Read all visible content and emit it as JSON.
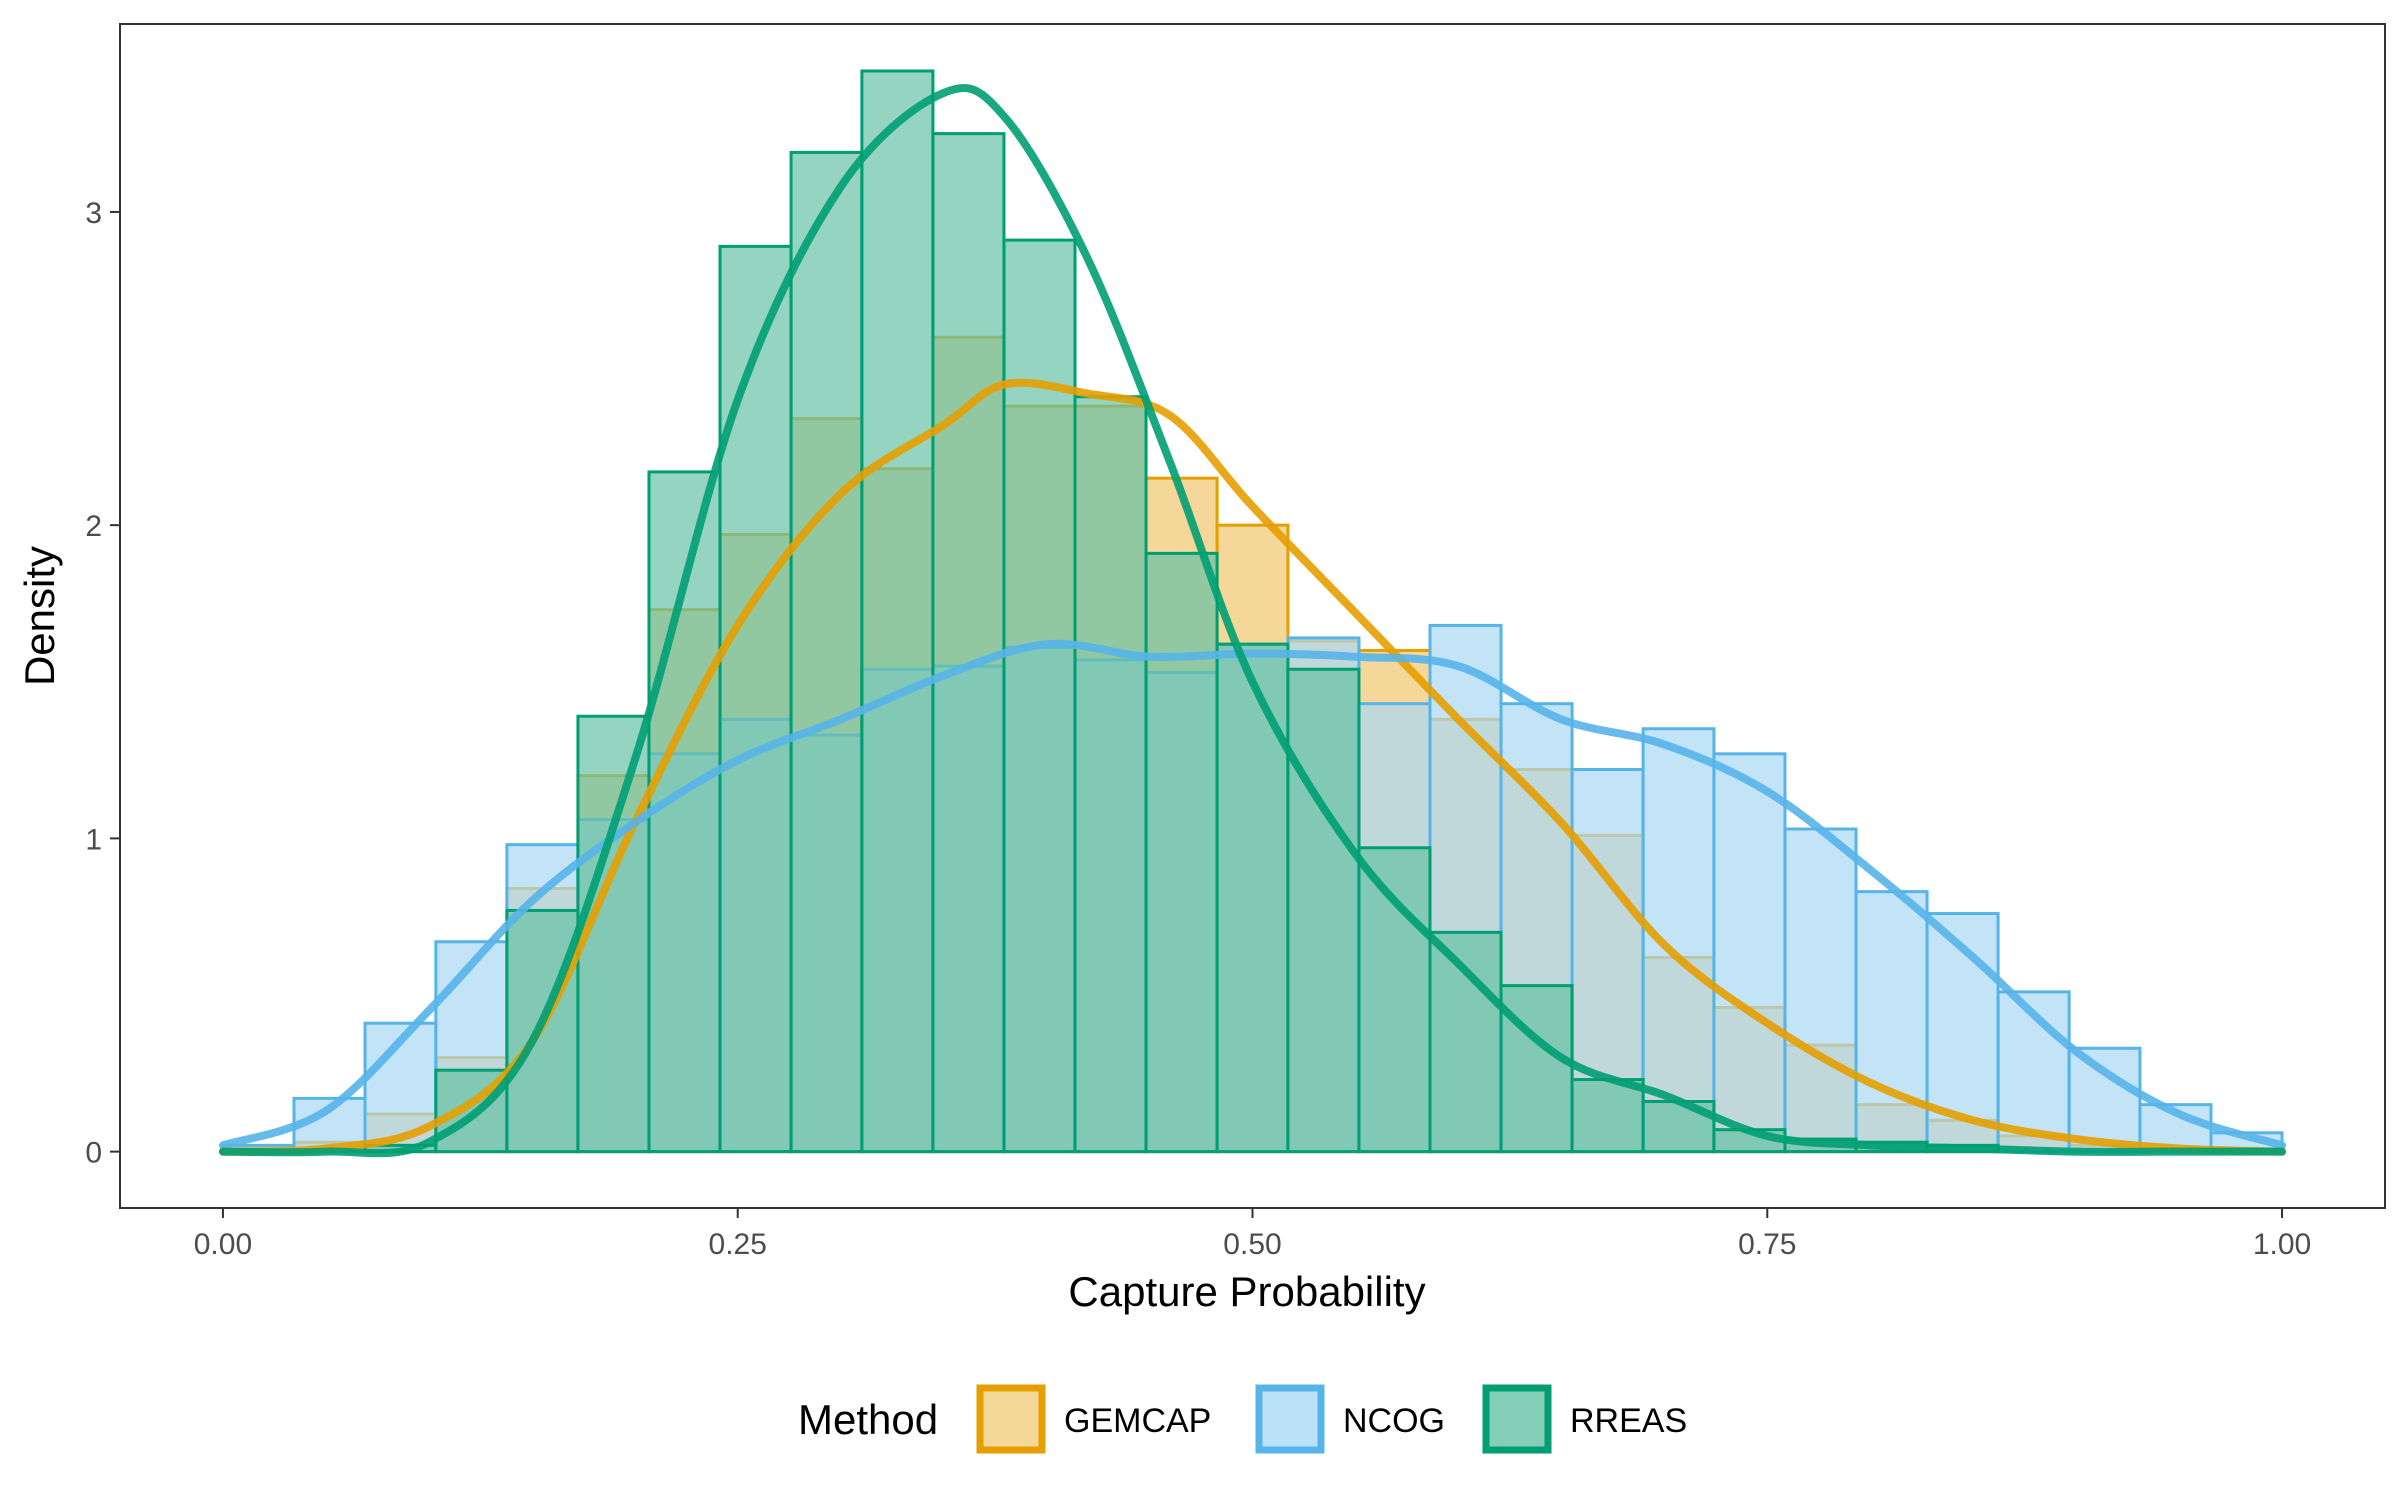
{
  "chart_data": {
    "type": "histogram-density",
    "xlabel": "Capture Probability",
    "ylabel": "Density",
    "xlim": [
      -0.05,
      1.05
    ],
    "ylim": [
      -0.18,
      3.6
    ],
    "x_ticks": [
      0,
      0.25,
      0.5,
      0.75,
      1
    ],
    "x_tick_labels": [
      "0.00",
      "0.25",
      "0.50",
      "0.75",
      "1.00"
    ],
    "y_ticks": [
      0,
      1,
      2,
      3
    ],
    "y_tick_labels": [
      "0",
      "1",
      "2",
      "3"
    ],
    "grid": false,
    "legend": {
      "title": "Method",
      "position": "bottom"
    },
    "bin_edges": [
      0,
      0.0345,
      0.069,
      0.1034,
      0.1379,
      0.1724,
      0.2069,
      0.2414,
      0.2759,
      0.3103,
      0.3448,
      0.3793,
      0.4138,
      0.4483,
      0.4828,
      0.5172,
      0.5517,
      0.5862,
      0.6207,
      0.6552,
      0.6897,
      0.7241,
      0.7586,
      0.7931,
      0.8276,
      0.8621,
      0.8966,
      0.931,
      0.9655,
      1
    ],
    "series": [
      {
        "name": "GEMCAP",
        "color": "#E69F00",
        "fill": "#F3CE7F",
        "hist": [
          0.01,
          0.03,
          0.12,
          0.3,
          0.84,
          1.2,
          1.73,
          1.97,
          2.34,
          2.18,
          2.6,
          2.38,
          2.38,
          2.15,
          2.0,
          1.63,
          1.6,
          1.38,
          1.22,
          1.01,
          0.62,
          0.46,
          0.34,
          0.15,
          0.1,
          0.05,
          0.02,
          0.01,
          0.0
        ],
        "density": [
          [
            0,
            0.0
          ],
          [
            0.05,
            0.01
          ],
          [
            0.1,
            0.08
          ],
          [
            0.15,
            0.35
          ],
          [
            0.2,
            1.05
          ],
          [
            0.25,
            1.68
          ],
          [
            0.3,
            2.1
          ],
          [
            0.35,
            2.32
          ],
          [
            0.38,
            2.45
          ],
          [
            0.42,
            2.42
          ],
          [
            0.46,
            2.35
          ],
          [
            0.5,
            2.06
          ],
          [
            0.55,
            1.72
          ],
          [
            0.6,
            1.38
          ],
          [
            0.65,
            1.05
          ],
          [
            0.7,
            0.66
          ],
          [
            0.75,
            0.41
          ],
          [
            0.8,
            0.22
          ],
          [
            0.85,
            0.1
          ],
          [
            0.9,
            0.04
          ],
          [
            0.95,
            0.01
          ],
          [
            1.0,
            0.0
          ]
        ]
      },
      {
        "name": "NCOG",
        "color": "#56B4E9",
        "fill": "#AAD9F4",
        "hist": [
          0.02,
          0.17,
          0.41,
          0.67,
          0.98,
          1.06,
          1.27,
          1.38,
          1.33,
          1.54,
          1.55,
          1.61,
          1.57,
          1.53,
          1.62,
          1.64,
          1.43,
          1.68,
          1.43,
          1.22,
          1.35,
          1.27,
          1.03,
          0.83,
          0.76,
          0.51,
          0.33,
          0.15,
          0.06
        ],
        "density": [
          [
            0,
            0.02
          ],
          [
            0.05,
            0.13
          ],
          [
            0.1,
            0.45
          ],
          [
            0.15,
            0.8
          ],
          [
            0.2,
            1.05
          ],
          [
            0.25,
            1.25
          ],
          [
            0.3,
            1.38
          ],
          [
            0.35,
            1.52
          ],
          [
            0.4,
            1.62
          ],
          [
            0.45,
            1.58
          ],
          [
            0.5,
            1.59
          ],
          [
            0.55,
            1.58
          ],
          [
            0.6,
            1.55
          ],
          [
            0.65,
            1.38
          ],
          [
            0.7,
            1.3
          ],
          [
            0.75,
            1.15
          ],
          [
            0.8,
            0.9
          ],
          [
            0.85,
            0.62
          ],
          [
            0.9,
            0.32
          ],
          [
            0.95,
            0.12
          ],
          [
            1.0,
            0.02
          ]
        ]
      },
      {
        "name": "RREAS",
        "color": "#009E73",
        "fill": "#66C2A5",
        "hist": [
          0.0,
          0.0,
          0.02,
          0.26,
          0.77,
          1.39,
          2.17,
          2.89,
          3.19,
          3.45,
          3.25,
          2.91,
          2.41,
          1.91,
          1.62,
          1.54,
          0.97,
          0.7,
          0.53,
          0.23,
          0.16,
          0.07,
          0.04,
          0.03,
          0.02,
          0.0,
          0.0,
          0.0,
          0.0
        ],
        "density": [
          [
            0,
            0.0
          ],
          [
            0.05,
            0.0
          ],
          [
            0.1,
            0.03
          ],
          [
            0.15,
            0.35
          ],
          [
            0.2,
            1.25
          ],
          [
            0.25,
            2.4
          ],
          [
            0.3,
            3.08
          ],
          [
            0.35,
            3.38
          ],
          [
            0.38,
            3.3
          ],
          [
            0.42,
            2.85
          ],
          [
            0.46,
            2.2
          ],
          [
            0.5,
            1.5
          ],
          [
            0.55,
            0.95
          ],
          [
            0.6,
            0.6
          ],
          [
            0.65,
            0.3
          ],
          [
            0.7,
            0.18
          ],
          [
            0.75,
            0.05
          ],
          [
            0.8,
            0.02
          ],
          [
            0.85,
            0.01
          ],
          [
            0.9,
            0.0
          ],
          [
            0.95,
            0.0
          ],
          [
            1.0,
            0.0
          ]
        ]
      }
    ]
  }
}
